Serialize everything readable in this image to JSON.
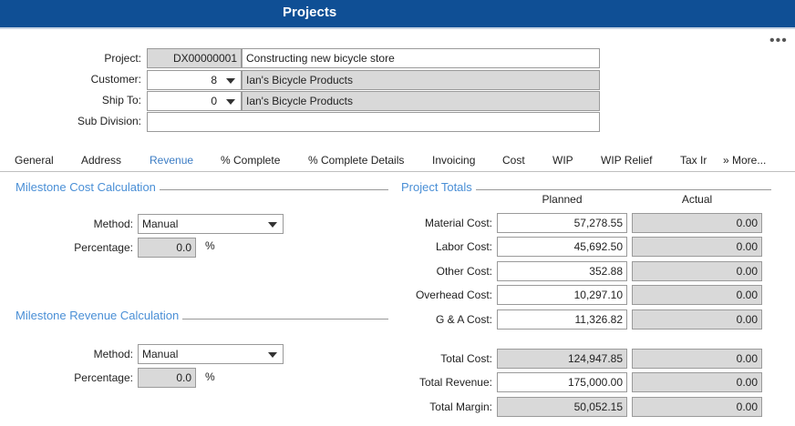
{
  "header": {
    "title": "Projects",
    "more_menu": "•••"
  },
  "project_form": {
    "project_label": "Project:",
    "project_id": "DX00000001",
    "project_name": "Constructing new bicycle store",
    "customer_label": "Customer:",
    "customer_value": "8",
    "customer_name": "Ian's Bicycle Products",
    "ship_to_label": "Ship To:",
    "ship_to_value": "0",
    "ship_to_name": "Ian's Bicycle Products",
    "sub_division_label": "Sub Division:",
    "sub_division_value": ""
  },
  "tabs": [
    {
      "label": "General"
    },
    {
      "label": "Address"
    },
    {
      "label": "Revenue"
    },
    {
      "label": "% Complete"
    },
    {
      "label": "% Complete Details"
    },
    {
      "label": "Invoicing"
    },
    {
      "label": "Cost"
    },
    {
      "label": "WIP"
    },
    {
      "label": "WIP Relief"
    },
    {
      "label": "Tax Ir"
    },
    {
      "label": "» More..."
    }
  ],
  "active_tab": "Revenue",
  "milestone_cost": {
    "title": "Milestone Cost Calculation",
    "method_label": "Method:",
    "method_value": "Manual",
    "percentage_label": "Percentage:",
    "percentage_value": "0.0",
    "unit": "%"
  },
  "milestone_revenue": {
    "title": "Milestone Revenue Calculation",
    "method_label": "Method:",
    "method_value": "Manual",
    "percentage_label": "Percentage:",
    "percentage_value": "0.0",
    "unit": "%"
  },
  "project_totals": {
    "title": "Project Totals",
    "planned_header": "Planned",
    "actual_header": "Actual",
    "rows": [
      {
        "label": "Material Cost:",
        "planned": "57,278.55",
        "actual": "0.00"
      },
      {
        "label": "Labor Cost:",
        "planned": "45,692.50",
        "actual": "0.00"
      },
      {
        "label": "Other Cost:",
        "planned": "352.88",
        "actual": "0.00"
      },
      {
        "label": "Overhead Cost:",
        "planned": "10,297.10",
        "actual": "0.00"
      },
      {
        "label": "G & A Cost:",
        "planned": "11,326.82",
        "actual": "0.00"
      },
      {
        "label": "Total Cost:",
        "planned": "124,947.85",
        "actual": "0.00"
      },
      {
        "label": "Total Revenue:",
        "planned": "175,000.00",
        "actual": "0.00"
      },
      {
        "label": "Total Margin:",
        "planned": "50,052.15",
        "actual": "0.00"
      }
    ]
  },
  "colors": {
    "header_bg": "#0f4f95",
    "accent": "#4a8fd6",
    "readonly_bg": "#d9d9d9"
  }
}
